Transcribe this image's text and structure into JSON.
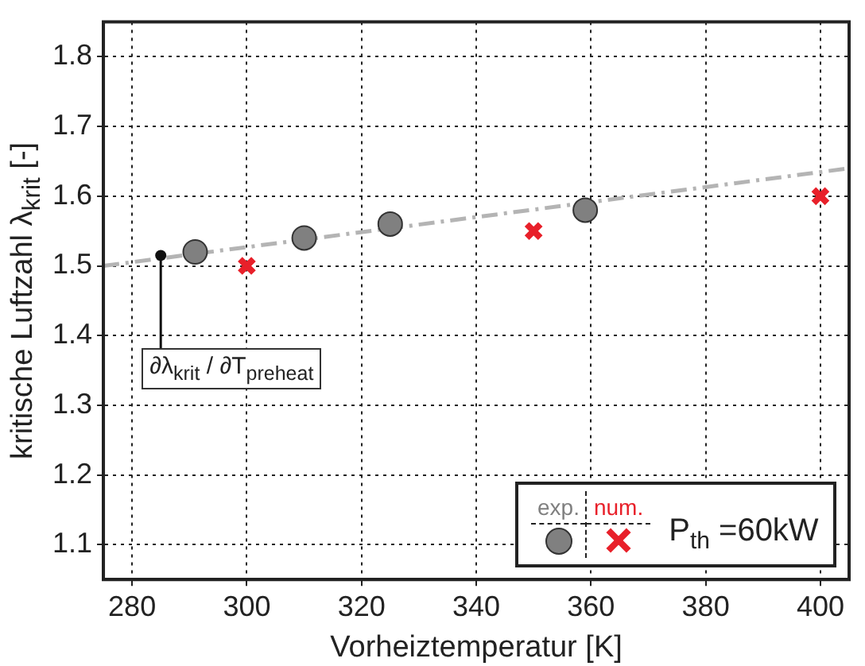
{
  "chart_data": {
    "type": "scatter",
    "xlabel": "Vorheiztemperatur [K]",
    "ylabel": "kritische Luftzahl λ$_{krit}$ [-]",
    "legend_title": "P$_{th}$ =60kW",
    "series": [
      {
        "name": "exp.",
        "marker": "circle",
        "color": "#808080",
        "x": [
          291,
          310,
          325,
          359
        ],
        "values": [
          1.52,
          1.54,
          1.56,
          1.58
        ]
      },
      {
        "name": "num.",
        "marker": "cross",
        "color": "#e8202a",
        "x": [
          300,
          350,
          400
        ],
        "values": [
          1.5,
          1.55,
          1.6
        ]
      },
      {
        "type": "line",
        "marker": "none",
        "line_style": "dashed",
        "color": "#b4b4b4",
        "x": [
          275,
          405
        ],
        "values": [
          1.5,
          1.64
        ]
      }
    ],
    "annotations": [
      {
        "text": "∂λ$_{krit}$ / ∂T$_{preheat}$",
        "x": 285,
        "y": 1.515
      }
    ],
    "xlim": [
      275,
      405
    ],
    "ylim": [
      1.05,
      1.85
    ],
    "xticks": [
      280,
      300,
      320,
      340,
      360,
      380,
      400
    ],
    "yticks": [
      1.1,
      1.2,
      1.3,
      1.4,
      1.5,
      1.6,
      1.7,
      1.8
    ],
    "grid": true,
    "legend": "bottom right"
  }
}
